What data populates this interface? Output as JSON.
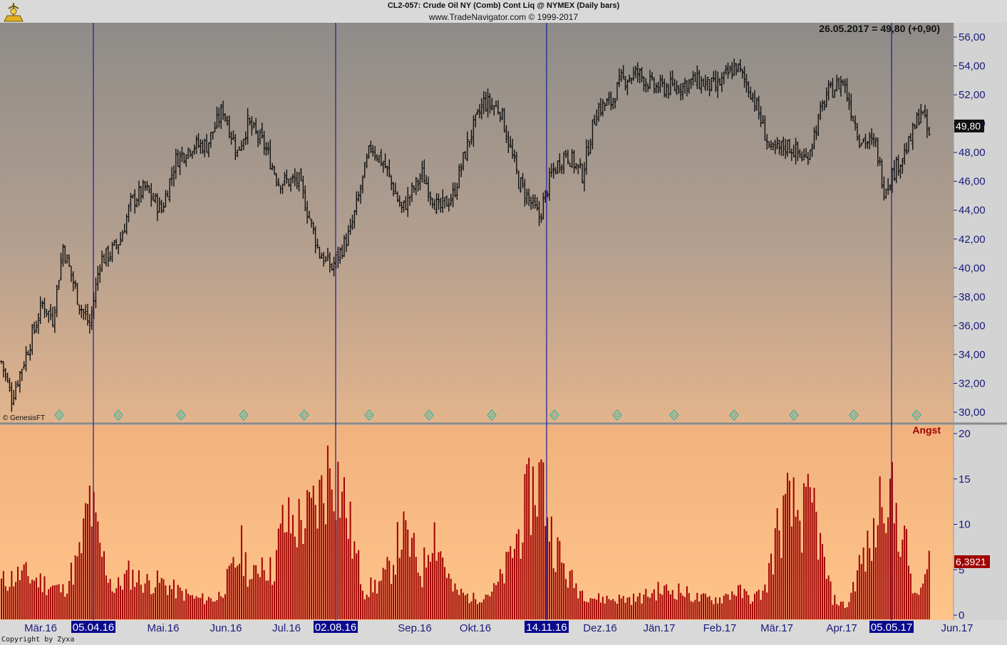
{
  "header": {
    "title": "CL2-057:  Crude Oil NY (Comb) Cont Liq @ NYMEX  (Daily bars)",
    "source": "www.TradeNavigator.com © 1999-2017"
  },
  "price_panel": {
    "readout": "26.05.2017 = 49,80 (+0,90)",
    "last_price_label": "49,80",
    "watermark": "© GenesisFT",
    "y_ticks": [
      "30,00",
      "32,00",
      "34,00",
      "36,00",
      "38,00",
      "40,00",
      "42,00",
      "44,00",
      "46,00",
      "48,00",
      "50,00",
      "52,00",
      "54,00",
      "56,00"
    ]
  },
  "indicator_panel": {
    "name": "Angst",
    "last_value_label": "6,3921",
    "y_ticks": [
      "0",
      "5",
      "10",
      "15",
      "20"
    ]
  },
  "x_axis": {
    "month_labels": [
      "Mär.16",
      "Mai.16",
      "Jun.16",
      "Jul.16",
      "Sep.16",
      "Okt.16",
      "Dez.16",
      "Jän.17",
      "Feb.17",
      "Mär.17",
      "Apr.17",
      "Jun.17"
    ],
    "highlight_dates": [
      "05.04.16",
      "02.08.16",
      "14.11.16",
      "05.05.17"
    ]
  },
  "footer": {
    "copyright": "Copyright by Zyxa"
  },
  "colors": {
    "price_bar": "#111111",
    "indicator_bar": "#a00000",
    "vline": "#1a1a9e",
    "marker": "#2fb6a0",
    "highlight_bg": "#0a0a8c"
  },
  "chart_data": [
    {
      "type": "ohlc",
      "title": "CL2-057:  Crude Oil NY (Comb) Cont Liq @ NYMEX  (Daily bars)",
      "ylim": [
        29,
        57
      ],
      "keypoints": [
        {
          "d": 0,
          "p": 33.5
        },
        {
          "d": 5,
          "p": 31.0
        },
        {
          "d": 12,
          "p": 34.0
        },
        {
          "d": 20,
          "p": 37.5
        },
        {
          "d": 25,
          "p": 36.5
        },
        {
          "d": 30,
          "p": 41.5
        },
        {
          "d": 38,
          "p": 37.5
        },
        {
          "d": 43,
          "p": 36.0
        },
        {
          "d": 48,
          "p": 40.5
        },
        {
          "d": 53,
          "p": 41.0
        },
        {
          "d": 58,
          "p": 42.0
        },
        {
          "d": 63,
          "p": 44.5
        },
        {
          "d": 70,
          "p": 45.5
        },
        {
          "d": 78,
          "p": 44.0
        },
        {
          "d": 85,
          "p": 47.5
        },
        {
          "d": 93,
          "p": 48.5
        },
        {
          "d": 100,
          "p": 48.5
        },
        {
          "d": 108,
          "p": 51.0
        },
        {
          "d": 115,
          "p": 48.0
        },
        {
          "d": 120,
          "p": 50.0
        },
        {
          "d": 128,
          "p": 48.5
        },
        {
          "d": 135,
          "p": 46.0
        },
        {
          "d": 145,
          "p": 46.0
        },
        {
          "d": 155,
          "p": 41.0
        },
        {
          "d": 161,
          "p": 40.0
        },
        {
          "d": 170,
          "p": 42.5
        },
        {
          "d": 180,
          "p": 48.5
        },
        {
          "d": 187,
          "p": 47.0
        },
        {
          "d": 195,
          "p": 44.0
        },
        {
          "d": 205,
          "p": 46.5
        },
        {
          "d": 213,
          "p": 44.0
        },
        {
          "d": 220,
          "p": 45.0
        },
        {
          "d": 228,
          "p": 49.0
        },
        {
          "d": 235,
          "p": 51.5
        },
        {
          "d": 243,
          "p": 51.0
        },
        {
          "d": 252,
          "p": 46.0
        },
        {
          "d": 258,
          "p": 44.5
        },
        {
          "d": 262,
          "p": 43.5
        },
        {
          "d": 268,
          "p": 46.5
        },
        {
          "d": 275,
          "p": 48.0
        },
        {
          "d": 283,
          "p": 46.5
        },
        {
          "d": 290,
          "p": 51.0
        },
        {
          "d": 297,
          "p": 51.5
        },
        {
          "d": 302,
          "p": 53.0
        },
        {
          "d": 310,
          "p": 53.5
        },
        {
          "d": 318,
          "p": 52.5
        },
        {
          "d": 328,
          "p": 52.5
        },
        {
          "d": 338,
          "p": 53.0
        },
        {
          "d": 348,
          "p": 52.5
        },
        {
          "d": 358,
          "p": 54.0
        },
        {
          "d": 366,
          "p": 52.0
        },
        {
          "d": 375,
          "p": 48.0
        },
        {
          "d": 383,
          "p": 48.5
        },
        {
          "d": 392,
          "p": 47.5
        },
        {
          "d": 402,
          "p": 52.0
        },
        {
          "d": 410,
          "p": 53.0
        },
        {
          "d": 418,
          "p": 49.0
        },
        {
          "d": 426,
          "p": 48.5
        },
        {
          "d": 430,
          "p": 45.5
        },
        {
          "d": 436,
          "p": 47.0
        },
        {
          "d": 442,
          "p": 48.5
        },
        {
          "d": 448,
          "p": 51.0
        },
        {
          "d": 452,
          "p": 49.0
        }
      ]
    },
    {
      "type": "bar",
      "name": "Angst",
      "ylim": [
        0,
        21
      ],
      "keypoints": [
        {
          "d": 0,
          "v": 4
        },
        {
          "d": 10,
          "v": 5
        },
        {
          "d": 20,
          "v": 4
        },
        {
          "d": 30,
          "v": 3
        },
        {
          "d": 38,
          "v": 7
        },
        {
          "d": 43,
          "v": 14
        },
        {
          "d": 48,
          "v": 8
        },
        {
          "d": 55,
          "v": 3
        },
        {
          "d": 62,
          "v": 5
        },
        {
          "d": 70,
          "v": 4
        },
        {
          "d": 78,
          "v": 4
        },
        {
          "d": 85,
          "v": 3
        },
        {
          "d": 95,
          "v": 2
        },
        {
          "d": 105,
          "v": 2
        },
        {
          "d": 112,
          "v": 5
        },
        {
          "d": 117,
          "v": 8
        },
        {
          "d": 122,
          "v": 4
        },
        {
          "d": 127,
          "v": 7
        },
        {
          "d": 132,
          "v": 5
        },
        {
          "d": 137,
          "v": 11
        },
        {
          "d": 143,
          "v": 11
        },
        {
          "d": 150,
          "v": 12
        },
        {
          "d": 155,
          "v": 14
        },
        {
          "d": 161,
          "v": 19
        },
        {
          "d": 167,
          "v": 14
        },
        {
          "d": 172,
          "v": 8
        },
        {
          "d": 177,
          "v": 3
        },
        {
          "d": 185,
          "v": 4
        },
        {
          "d": 190,
          "v": 6
        },
        {
          "d": 195,
          "v": 10
        },
        {
          "d": 200,
          "v": 8
        },
        {
          "d": 205,
          "v": 5
        },
        {
          "d": 210,
          "v": 11
        },
        {
          "d": 215,
          "v": 7
        },
        {
          "d": 220,
          "v": 3
        },
        {
          "d": 230,
          "v": 2
        },
        {
          "d": 240,
          "v": 3
        },
        {
          "d": 245,
          "v": 5
        },
        {
          "d": 252,
          "v": 10
        },
        {
          "d": 258,
          "v": 15
        },
        {
          "d": 263,
          "v": 17
        },
        {
          "d": 268,
          "v": 10
        },
        {
          "d": 275,
          "v": 5
        },
        {
          "d": 282,
          "v": 3
        },
        {
          "d": 290,
          "v": 2
        },
        {
          "d": 300,
          "v": 2
        },
        {
          "d": 310,
          "v": 2
        },
        {
          "d": 320,
          "v": 3
        },
        {
          "d": 330,
          "v": 3
        },
        {
          "d": 340,
          "v": 2
        },
        {
          "d": 350,
          "v": 2
        },
        {
          "d": 358,
          "v": 3
        },
        {
          "d": 366,
          "v": 2
        },
        {
          "d": 372,
          "v": 3
        },
        {
          "d": 378,
          "v": 10
        },
        {
          "d": 383,
          "v": 13
        },
        {
          "d": 390,
          "v": 12
        },
        {
          "d": 396,
          "v": 13
        },
        {
          "d": 400,
          "v": 7
        },
        {
          "d": 405,
          "v": 2
        },
        {
          "d": 412,
          "v": 1
        },
        {
          "d": 418,
          "v": 6
        },
        {
          "d": 425,
          "v": 9
        },
        {
          "d": 430,
          "v": 17
        },
        {
          "d": 436,
          "v": 12
        },
        {
          "d": 441,
          "v": 8
        },
        {
          "d": 445,
          "v": 2
        },
        {
          "d": 450,
          "v": 4
        },
        {
          "d": 452,
          "v": 6.4
        }
      ]
    }
  ]
}
